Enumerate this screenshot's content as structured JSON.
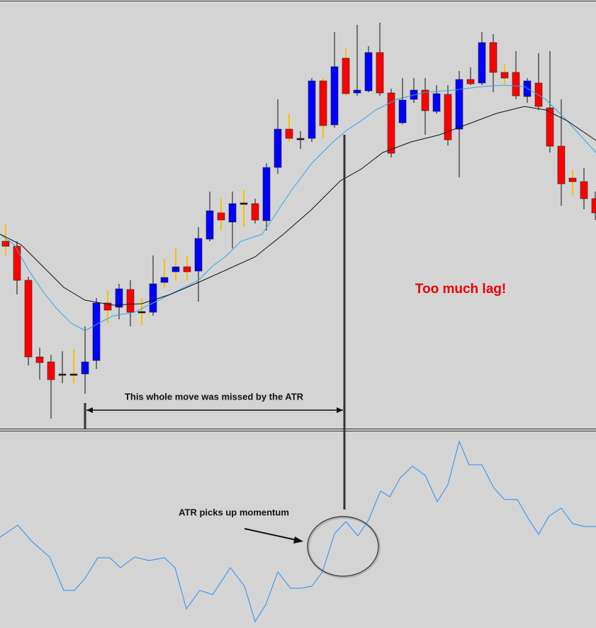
{
  "annotations": {
    "missed_move": "This whole move was missed by the ATR",
    "lag": "Too much lag!",
    "atr_momentum": "ATR picks up momentum"
  }
}
